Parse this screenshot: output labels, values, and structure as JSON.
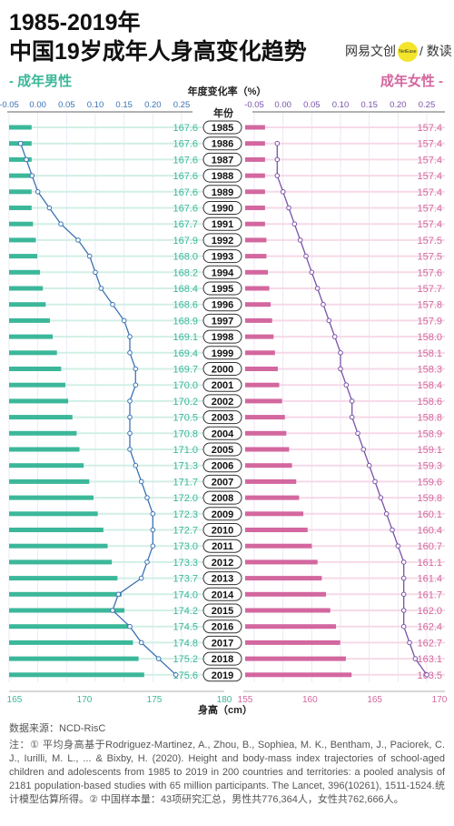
{
  "header": {
    "title_line1": "1985-2019年",
    "title_line2": "中国19岁成年人身高变化趋势",
    "brand": "网易文创",
    "brand_badge": "NetEase",
    "brand_suffix": "/ 数读",
    "legend_male": "- 成年男性",
    "legend_female": "成年女性 -"
  },
  "chart_data": {
    "type": "bar",
    "title": "1985-2019年 中国19岁成年人身高变化趋势",
    "year_axis_label": "年份",
    "top_axis_label": "年度变化率（%）",
    "top_axis_ticks": [
      "-0.05",
      "0.00",
      "0.05",
      "0.10",
      "0.15",
      "0.20",
      "0.25"
    ],
    "top_axis_range": [
      -0.05,
      0.25
    ],
    "bottom_axis_label": "身高（cm）",
    "male_axis_ticks": [
      "165",
      "170",
      "175",
      "180"
    ],
    "male_axis_range": [
      165,
      180
    ],
    "female_axis_ticks": [
      "155",
      "160",
      "165",
      "170"
    ],
    "female_axis_range": [
      155,
      170
    ],
    "years": [
      "1985",
      "1986",
      "1987",
      "1988",
      "1989",
      "1990",
      "1991",
      "1992",
      "1993",
      "1994",
      "1995",
      "1996",
      "1997",
      "1998",
      "1999",
      "2000",
      "2001",
      "2002",
      "2003",
      "2004",
      "2005",
      "2006",
      "2007",
      "2008",
      "2009",
      "2010",
      "2011",
      "2012",
      "2013",
      "2014",
      "2015",
      "2016",
      "2017",
      "2018",
      "2019"
    ],
    "series": [
      {
        "name": "成年男性",
        "unit": "cm",
        "color": "#3cb79a",
        "values": [
          167.6,
          167.6,
          167.6,
          167.6,
          167.6,
          167.6,
          167.7,
          167.9,
          168.0,
          168.2,
          168.4,
          168.6,
          168.9,
          169.1,
          169.4,
          169.7,
          170.0,
          170.2,
          170.5,
          170.8,
          171.0,
          171.3,
          171.7,
          172.0,
          172.3,
          172.7,
          173.0,
          173.3,
          173.7,
          174.0,
          174.2,
          174.5,
          174.8,
          175.2,
          175.6
        ]
      },
      {
        "name": "成年男性",
        "unit": "%",
        "color": "#3b73b3",
        "values": [
          null,
          -0.03,
          -0.02,
          -0.01,
          0.0,
          0.02,
          0.04,
          0.07,
          0.09,
          0.1,
          0.11,
          0.13,
          0.15,
          0.16,
          0.16,
          0.17,
          0.17,
          0.16,
          0.16,
          0.16,
          0.16,
          0.17,
          0.18,
          0.19,
          0.2,
          0.2,
          0.2,
          0.19,
          0.18,
          0.14,
          0.13,
          0.16,
          0.18,
          0.21,
          0.24
        ]
      },
      {
        "name": "成年女性",
        "unit": "cm",
        "color": "#d3679f",
        "values": [
          157.4,
          157.4,
          157.4,
          157.4,
          157.4,
          157.4,
          157.4,
          157.5,
          157.5,
          157.6,
          157.7,
          157.8,
          157.9,
          158.0,
          158.1,
          158.3,
          158.4,
          158.6,
          158.8,
          158.9,
          159.1,
          159.3,
          159.6,
          159.8,
          160.1,
          160.4,
          160.7,
          161.1,
          161.4,
          161.7,
          162.0,
          162.4,
          162.7,
          163.1,
          163.5
        ]
      },
      {
        "name": "成年女性",
        "unit": "%",
        "color": "#7a52a8",
        "values": [
          null,
          -0.01,
          -0.01,
          -0.01,
          0.0,
          0.01,
          0.02,
          0.03,
          0.04,
          0.05,
          0.06,
          0.07,
          0.08,
          0.09,
          0.1,
          0.1,
          0.11,
          0.12,
          0.12,
          0.13,
          0.14,
          0.15,
          0.16,
          0.17,
          0.18,
          0.19,
          0.2,
          0.21,
          0.21,
          0.21,
          0.21,
          0.21,
          0.22,
          0.23,
          0.25
        ]
      }
    ],
    "grid": true
  },
  "footer": {
    "source": "数据来源：NCD-RisC",
    "note": "注：① 平均身高基于Rodriguez-Martinez, A., Zhou, B., Sophiea, M. K., Bentham, J., Paciorek, C. J., Iurilli, M. L., ... & Bixby, H. (2020). Height and body-mass index trajectories of school-aged children and adolescents from 1985 to 2019 in 200 countries and territories: a pooled analysis of 2181 population-based studies with 65 million participants. The Lancet, 396(10261), 1511-1524.统计模型估算所得。② 中国样本量：43项研究汇总，男性共776,364人，女性共762,666人。"
  }
}
